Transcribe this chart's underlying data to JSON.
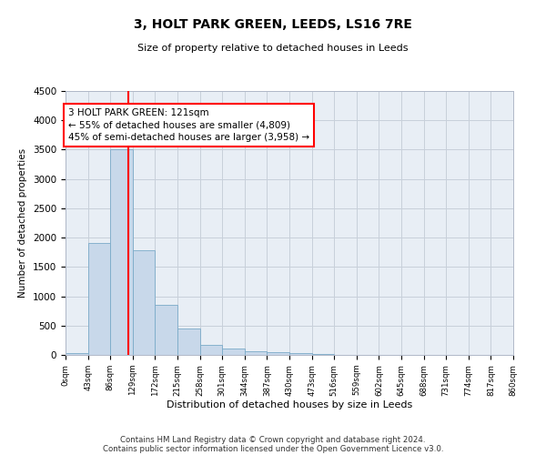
{
  "title": "3, HOLT PARK GREEN, LEEDS, LS16 7RE",
  "subtitle": "Size of property relative to detached houses in Leeds",
  "xlabel": "Distribution of detached houses by size in Leeds",
  "ylabel": "Number of detached properties",
  "bar_color": "#c8d8ea",
  "bar_edge_color": "#7aaac8",
  "background_color": "#ffffff",
  "axes_bg_color": "#e8eef5",
  "grid_color": "#c8d0da",
  "annotation_line_color": "red",
  "annotation_text_line1": "3 HOLT PARK GREEN: 121sqm",
  "annotation_text_line2": "← 55% of detached houses are smaller (4,809)",
  "annotation_text_line3": "45% of semi-detached houses are larger (3,958) →",
  "property_size": 121,
  "bin_edges": [
    0,
    43,
    86,
    129,
    172,
    215,
    258,
    301,
    344,
    387,
    430,
    473,
    516,
    559,
    602,
    645,
    688,
    731,
    774,
    817,
    860
  ],
  "bin_counts": [
    30,
    1910,
    3500,
    1780,
    850,
    450,
    165,
    105,
    60,
    48,
    30,
    20,
    0,
    0,
    0,
    0,
    0,
    0,
    0,
    0
  ],
  "ylim": [
    0,
    4500
  ],
  "yticks": [
    0,
    500,
    1000,
    1500,
    2000,
    2500,
    3000,
    3500,
    4000,
    4500
  ],
  "footer_line1": "Contains HM Land Registry data © Crown copyright and database right 2024.",
  "footer_line2": "Contains public sector information licensed under the Open Government Licence v3.0."
}
